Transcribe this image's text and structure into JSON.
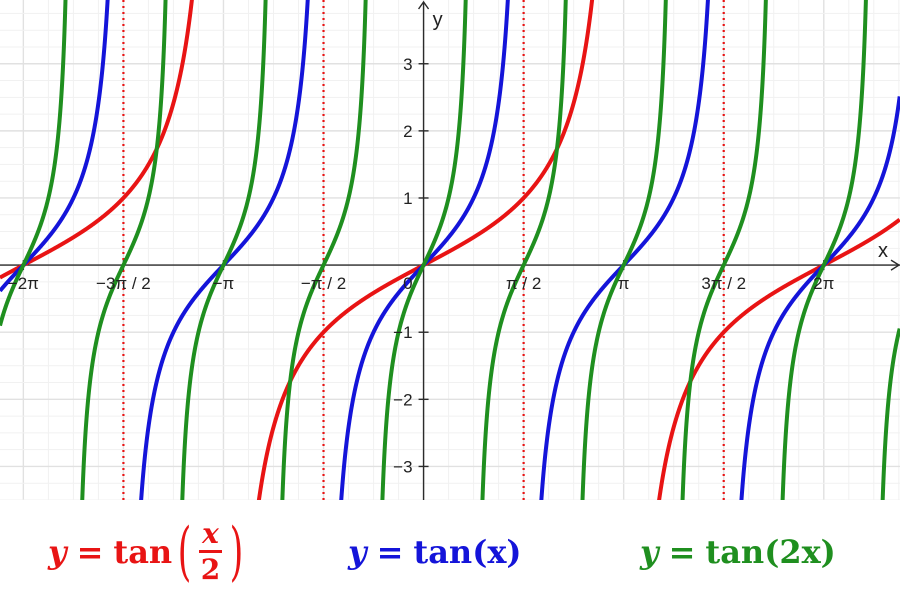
{
  "chart_data": {
    "type": "line",
    "xlim": [
      -6.65,
      7.48
    ],
    "ylim": [
      -3.5,
      3.95
    ],
    "x_ticks": [
      {
        "value": -6.283185,
        "label": "−2π"
      },
      {
        "value": -4.712389,
        "label": "−3π / 2"
      },
      {
        "value": -3.141593,
        "label": "−π"
      },
      {
        "value": -1.570796,
        "label": "−π / 2"
      },
      {
        "value": 1.570796,
        "label": "π / 2"
      },
      {
        "value": 3.141593,
        "label": "π"
      },
      {
        "value": 4.712389,
        "label": "3π / 2"
      },
      {
        "value": 6.283185,
        "label": "2π"
      }
    ],
    "y_ticks": [
      {
        "value": -3,
        "label": "−3"
      },
      {
        "value": -2,
        "label": "−2"
      },
      {
        "value": -1,
        "label": "−1"
      },
      {
        "value": 1,
        "label": "1"
      },
      {
        "value": 2,
        "label": "2"
      },
      {
        "value": 3,
        "label": "3"
      }
    ],
    "origin_label": "0",
    "xlabel": "x",
    "ylabel": "y",
    "grid": true,
    "asymptotes": {
      "x": [
        -4.712389,
        -1.570796,
        1.570796,
        4.712389
      ],
      "color": "#e81414",
      "style": "dotted"
    },
    "series": [
      {
        "function": "tan(x/2)",
        "k": 0.5,
        "color": "#e81414"
      },
      {
        "function": "tan(x)",
        "k": 1,
        "color": "#1414d9"
      },
      {
        "function": "tan(2x)",
        "k": 2,
        "color": "#1f8f1f"
      }
    ]
  },
  "legend": {
    "red": {
      "y": "y",
      "eq": "=",
      "fn": "tan",
      "num": "x",
      "den": "2",
      "lp": "(",
      "rp": ")",
      "color": "#e81414"
    },
    "blue": {
      "y": "y",
      "eq": "=",
      "fn": "tan",
      "arg": "(x)",
      "color": "#1414d9"
    },
    "green": {
      "y": "y",
      "eq": "=",
      "fn": "tan",
      "arg": "(2x)",
      "color": "#1f8f1f"
    }
  }
}
